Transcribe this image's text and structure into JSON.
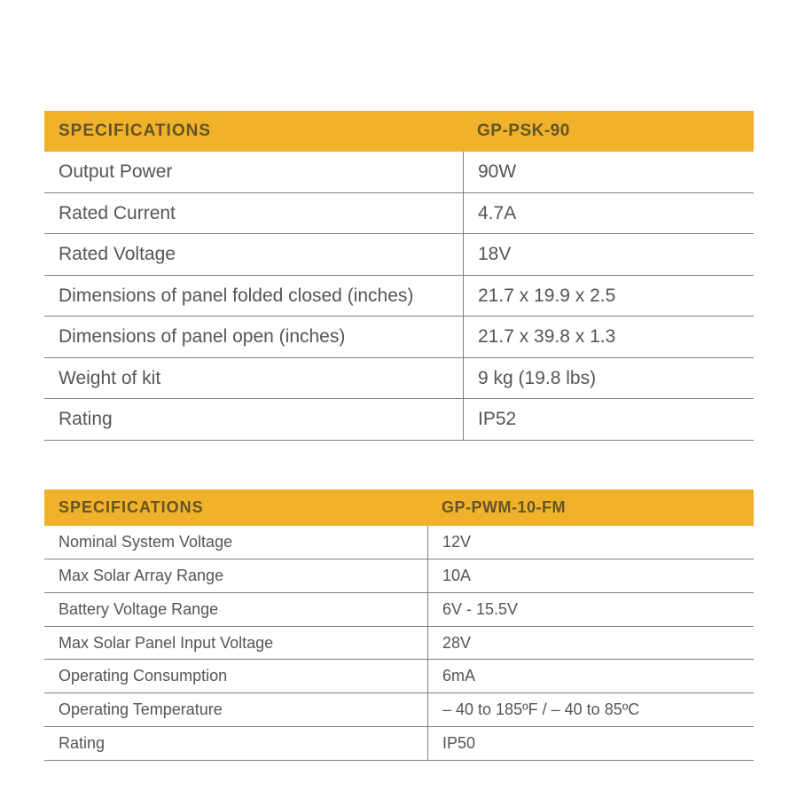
{
  "colors": {
    "header_bg": "#f1b22b",
    "header_text": "#645426",
    "row_text": "#555555",
    "border": "#808080"
  },
  "table1": {
    "header_left": "SPECIFICATIONS",
    "header_right": "GP-PSK-90",
    "rows": [
      {
        "label": "Output Power",
        "value": "90W"
      },
      {
        "label": "Rated Current",
        "value": "4.7A"
      },
      {
        "label": "Rated Voltage",
        "value": "18V"
      },
      {
        "label": "Dimensions of panel  folded closed  (inches)",
        "value": "21.7 x 19.9 x 2.5"
      },
      {
        "label": "Dimensions of panel open  (inches)",
        "value": "21.7 x 39.8 x 1.3"
      },
      {
        "label": "Weight of kit",
        "value": "9 kg (19.8 lbs)"
      },
      {
        "label": "Rating",
        "value": "IP52"
      }
    ]
  },
  "table2": {
    "header_left": "SPECIFICATIONS",
    "header_right": "GP-PWM-10-FM",
    "rows": [
      {
        "label": "Nominal System Voltage",
        "value": "12V"
      },
      {
        "label": "Max Solar Array Range",
        "value": "10A"
      },
      {
        "label": "Battery Voltage Range",
        "value": "6V - 15.5V"
      },
      {
        "label": "Max Solar Panel Input Voltage",
        "value": "28V"
      },
      {
        "label": "Operating Consumption",
        "value": "6mA"
      },
      {
        "label": "Operating Temperature",
        "value": "– 40 to 185ºF / – 40 to 85ºC"
      },
      {
        "label": "Rating",
        "value": "IP50"
      }
    ]
  }
}
